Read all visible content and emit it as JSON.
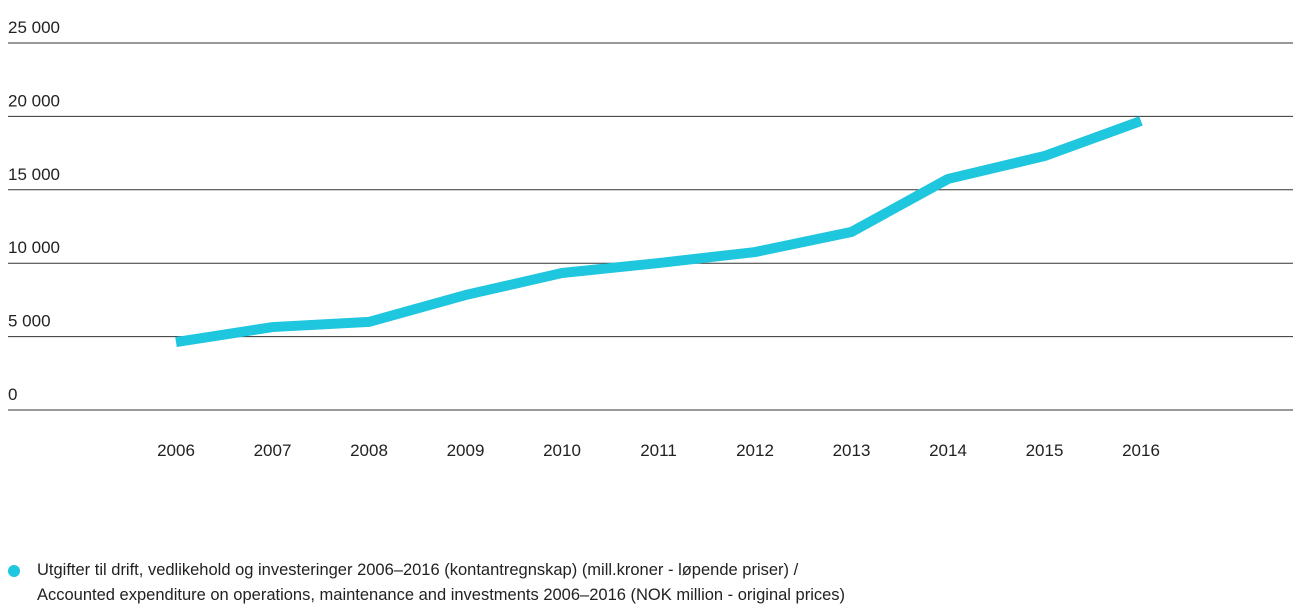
{
  "chart_data": {
    "type": "line",
    "categories": [
      "2006",
      "2007",
      "2008",
      "2009",
      "2010",
      "2011",
      "2012",
      "2013",
      "2014",
      "2015",
      "2016"
    ],
    "series": [
      {
        "name": "Utgifter til drift, vedlikehold og investeringer 2006–2016 (kontantregnskap) (mill.kroner - løpende priser) /\nAccounted expenditure on operations, maintenance and investments 2006–2016 (NOK million - original prices)",
        "color": "#1ec6de",
        "values": [
          4630,
          5650,
          6000,
          7830,
          9330,
          10010,
          10760,
          12130,
          15740,
          17300,
          19690
        ]
      }
    ],
    "ylim": [
      0,
      25000
    ],
    "yticks": [
      0,
      {
        "value": 5000,
        "label": "5 000"
      },
      {
        "value": 10000,
        "label": "10 000"
      },
      {
        "value": 15000,
        "label": "15 000"
      },
      {
        "value": 20000,
        "label": "20 000"
      },
      {
        "value": 25000,
        "label": "25 000"
      }
    ],
    "grid": true
  }
}
